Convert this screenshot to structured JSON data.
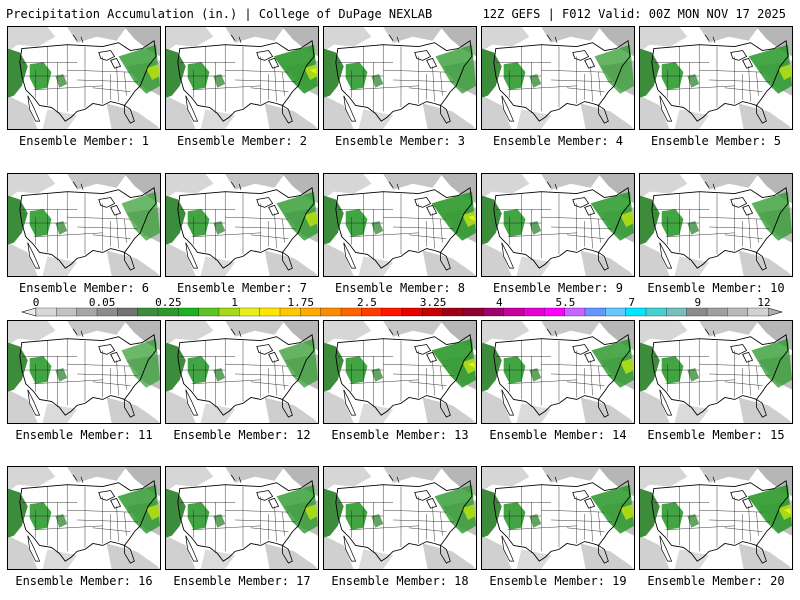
{
  "header": {
    "title": "Precipitation Accumulation (in.) | College of DuPage NEXLAB",
    "run_info": "12Z GEFS | F012 Valid: 00Z MON NOV 17 2025"
  },
  "panels": [
    {
      "label": "Ensemble Member: 1",
      "east_intensity": 0.6
    },
    {
      "label": "Ensemble Member: 2",
      "east_intensity": 0.9
    },
    {
      "label": "Ensemble Member: 3",
      "east_intensity": 0.5
    },
    {
      "label": "Ensemble Member: 4",
      "east_intensity": 0.4
    },
    {
      "label": "Ensemble Member: 5",
      "east_intensity": 0.8
    },
    {
      "label": "Ensemble Member: 6",
      "east_intensity": 0.3
    },
    {
      "label": "Ensemble Member: 7",
      "east_intensity": 0.6
    },
    {
      "label": "Ensemble Member: 8",
      "east_intensity": 0.9
    },
    {
      "label": "Ensemble Member: 9",
      "east_intensity": 0.8
    },
    {
      "label": "Ensemble Member: 10",
      "east_intensity": 0.5
    },
    {
      "label": "Ensemble Member: 11",
      "east_intensity": 0.3
    },
    {
      "label": "Ensemble Member: 12",
      "east_intensity": 0.4
    },
    {
      "label": "Ensemble Member: 13",
      "east_intensity": 0.9
    },
    {
      "label": "Ensemble Member: 14",
      "east_intensity": 0.7
    },
    {
      "label": "Ensemble Member: 15",
      "east_intensity": 0.5
    },
    {
      "label": "Ensemble Member: 16",
      "east_intensity": 0.7
    },
    {
      "label": "Ensemble Member: 17",
      "east_intensity": 0.6
    },
    {
      "label": "Ensemble Member: 18",
      "east_intensity": 0.6
    },
    {
      "label": "Ensemble Member: 19",
      "east_intensity": 0.8
    },
    {
      "label": "Ensemble Member: 20",
      "east_intensity": 0.9
    }
  ],
  "colorbar": {
    "tick_labels": [
      "0",
      "0.05",
      "0.25",
      "1",
      "1.75",
      "2.5",
      "3.25",
      "4",
      "5.5",
      "7",
      "9",
      "12"
    ],
    "colors": [
      "#d8d8d8",
      "#c2c2c2",
      "#a6a6a6",
      "#8c8c8c",
      "#737373",
      "#3c8c3c",
      "#2e9a2e",
      "#1fb01f",
      "#5fc41f",
      "#a8d81a",
      "#e8f01a",
      "#ffe600",
      "#ffc800",
      "#ffaa00",
      "#ff8c00",
      "#ff6400",
      "#ff3c00",
      "#ff1400",
      "#e60000",
      "#c80000",
      "#a00014",
      "#8c0032",
      "#a0006e",
      "#c800a0",
      "#e600d2",
      "#ff00ff",
      "#c864ff",
      "#6496ff",
      "#64c8ff",
      "#00e6ff",
      "#46d2d2",
      "#78bebe",
      "#8c8c8c",
      "#a0a0a0",
      "#b9b9b9",
      "#d2d2d2"
    ]
  }
}
